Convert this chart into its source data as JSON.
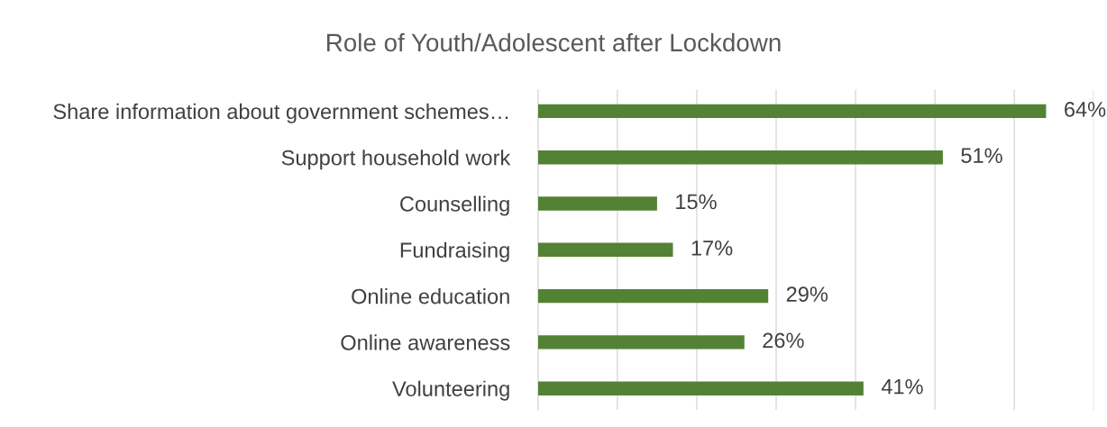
{
  "chart_data": {
    "type": "bar",
    "orientation": "horizontal",
    "title": "Role of Youth/Adolescent after Lockdown",
    "categories": [
      "Share information about government schemes…",
      "Support household work",
      "Counselling",
      "Fundraising",
      "Online education",
      "Online awareness",
      "Volunteering"
    ],
    "values": [
      64,
      51,
      15,
      17,
      29,
      26,
      41
    ],
    "value_labels": [
      "64%",
      "51%",
      "15%",
      "17%",
      "29%",
      "26%",
      "41%"
    ],
    "color": "#548235",
    "xlim": [
      0,
      70
    ],
    "xticks": [
      {
        "value": 0,
        "label": null
      },
      {
        "value": 10,
        "label": null
      },
      {
        "value": 20,
        "label": null
      },
      {
        "value": 30,
        "label": null
      },
      {
        "value": 40,
        "label": null
      },
      {
        "value": 50,
        "label": null
      },
      {
        "value": 60,
        "label": null
      },
      {
        "value": 70,
        "label": null
      }
    ],
    "grid": "x",
    "tick_labels": "y",
    "legend": false
  }
}
